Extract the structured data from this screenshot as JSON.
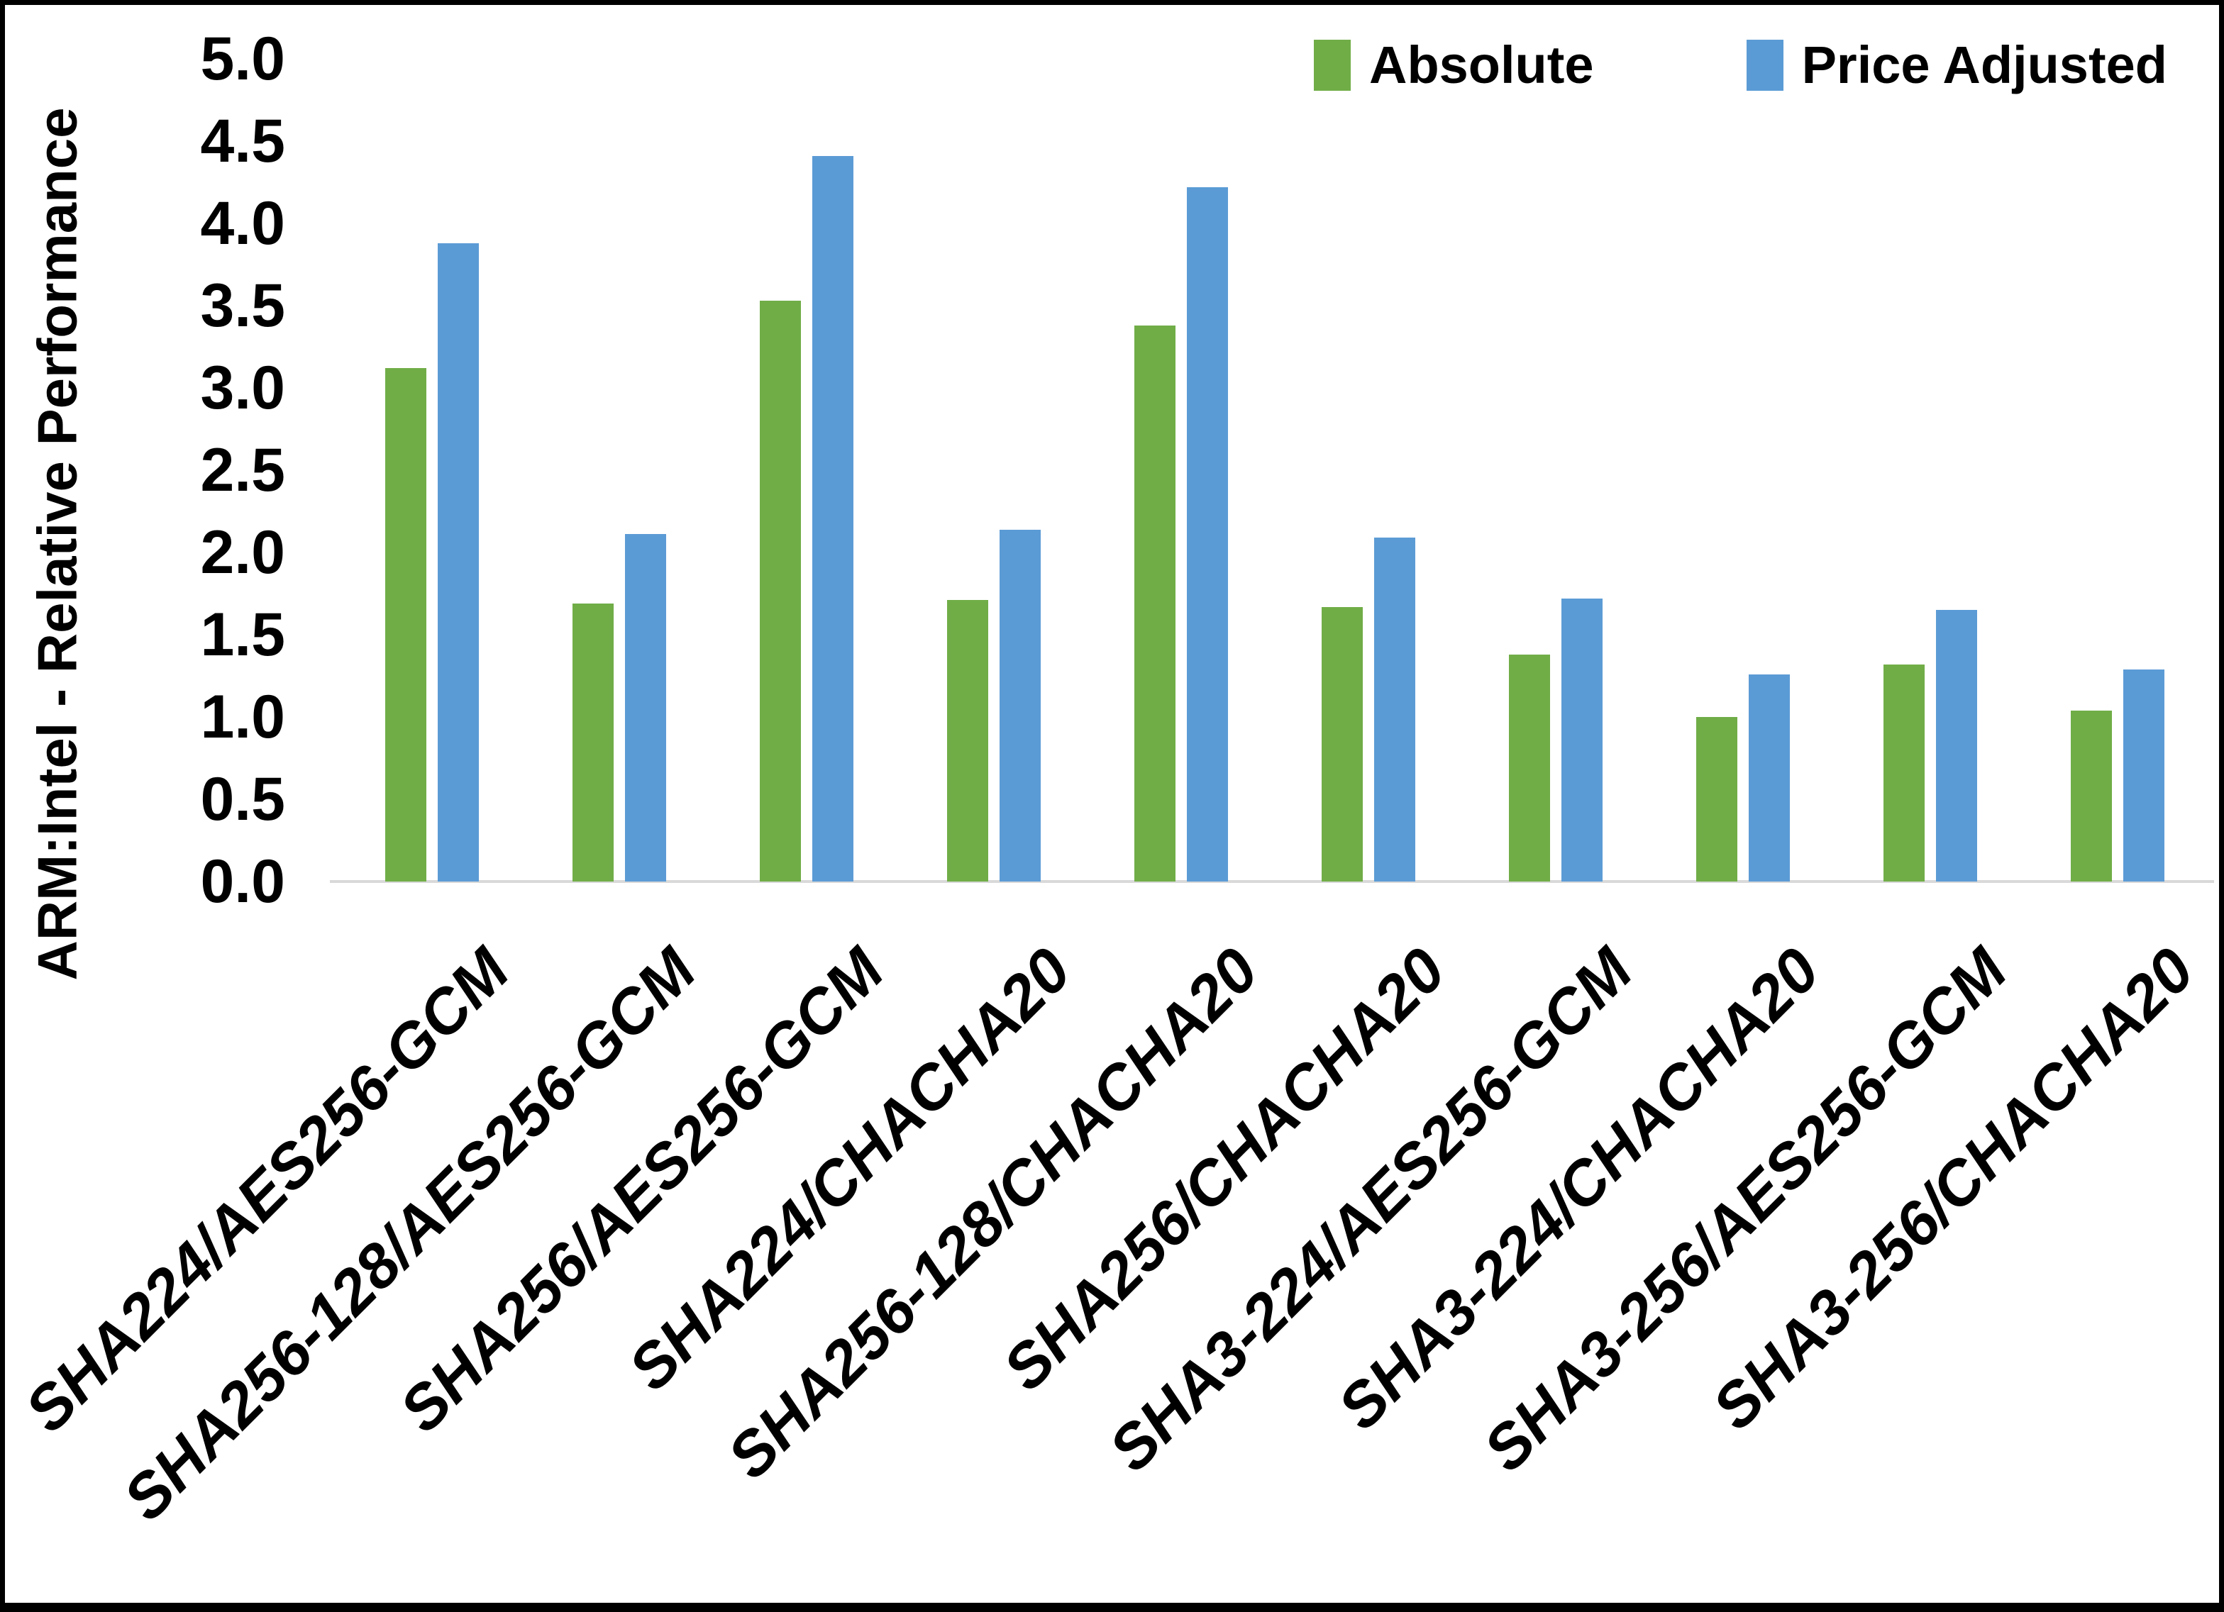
{
  "chart_data": {
    "type": "bar",
    "title": "",
    "xlabel": "",
    "ylabel": "ARM:Intel - Relative Performance",
    "ylim": [
      0.0,
      5.0
    ],
    "ytick_step": 0.5,
    "yticks": [
      "5.0",
      "4.5",
      "4.0",
      "3.5",
      "3.0",
      "2.5",
      "2.0",
      "1.5",
      "1.0",
      "0.5",
      "0.0"
    ],
    "grid": false,
    "legend_position": "top-right",
    "axis_line_color": "#D9D9D9",
    "categories": [
      "SHA224/AES256-GCM",
      "SHA256-128/AES256-GCM",
      "SHA256/AES256-GCM",
      "SHA224/CHACHA20",
      "SHA256-128/CHACHA20",
      "SHA256/CHACHA20",
      "SHA3-224/AES256-GCM",
      "SHA3-224/CHACHA20",
      "SHA3-256/AES256-GCM",
      "SHA3-256/CHACHA20"
    ],
    "series": [
      {
        "name": "Absolute",
        "color": "#70AD47",
        "values": [
          3.12,
          1.69,
          3.53,
          1.71,
          3.38,
          1.67,
          1.38,
          1.0,
          1.32,
          1.04
        ]
      },
      {
        "name": "Price Adjusted",
        "color": "#5B9BD5",
        "values": [
          3.88,
          2.11,
          4.41,
          2.14,
          4.22,
          2.09,
          1.72,
          1.26,
          1.65,
          1.29
        ]
      }
    ]
  }
}
